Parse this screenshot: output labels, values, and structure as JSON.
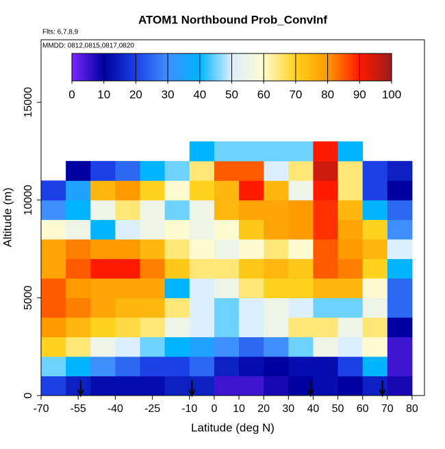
{
  "chart_data": {
    "type": "heatmap",
    "title": "ATOM1 Northbound Prob_ConvInf",
    "subtitle": "Flts: 6,7,8,9",
    "annotation": "MMDD: 0812,0815,0817,0820",
    "x_label": "Latitude (deg N)",
    "y_label": "Altitude (m)",
    "xlim": [
      -70,
      85
    ],
    "ylim": [
      0,
      18200
    ],
    "xticks": [
      -70,
      -55,
      -40,
      -25,
      -10,
      0,
      10,
      20,
      30,
      40,
      50,
      60,
      70,
      80
    ],
    "yticks": [
      0,
      5000,
      10000,
      15000
    ],
    "x_bins": [
      -70,
      -60,
      -50,
      -40,
      -30,
      -20,
      -10,
      0,
      10,
      20,
      30,
      40,
      50,
      60,
      70,
      80
    ],
    "y_bins": [
      0,
      1000,
      2000,
      3000,
      4000,
      5000,
      6000,
      7000,
      8000,
      9000,
      10000,
      11000,
      12000,
      13000
    ],
    "z": [
      [
        20,
        15,
        12,
        12,
        12,
        15,
        15,
        5,
        5,
        8,
        10,
        12,
        10,
        15,
        8
      ],
      [
        45,
        40,
        30,
        25,
        20,
        20,
        25,
        15,
        12,
        10,
        12,
        12,
        20,
        40,
        5
      ],
      [
        70,
        65,
        55,
        50,
        45,
        40,
        35,
        30,
        25,
        30,
        45,
        55,
        50,
        60,
        5
      ],
      [
        80,
        75,
        70,
        68,
        65,
        55,
        50,
        45,
        50,
        55,
        65,
        65,
        55,
        65,
        10
      ],
      [
        85,
        82,
        78,
        75,
        75,
        65,
        50,
        45,
        50,
        55,
        50,
        45,
        45,
        55,
        25
      ],
      [
        85,
        80,
        78,
        78,
        78,
        40,
        50,
        55,
        65,
        70,
        70,
        75,
        75,
        60,
        25
      ],
      [
        78,
        85,
        90,
        90,
        82,
        72,
        65,
        65,
        72,
        75,
        72,
        85,
        82,
        70,
        40
      ],
      [
        78,
        82,
        80,
        80,
        75,
        65,
        60,
        55,
        60,
        65,
        60,
        85,
        80,
        75,
        50
      ],
      [
        60,
        55,
        40,
        50,
        55,
        60,
        55,
        60,
        72,
        78,
        80,
        88,
        78,
        70,
        30
      ],
      [
        30,
        40,
        55,
        65,
        55,
        45,
        55,
        75,
        78,
        78,
        80,
        88,
        75,
        40,
        25
      ],
      [
        20,
        35,
        75,
        80,
        70,
        60,
        70,
        75,
        90,
        75,
        55,
        90,
        65,
        20,
        10
      ],
      [
        null,
        10,
        20,
        25,
        40,
        45,
        65,
        85,
        85,
        50,
        65,
        95,
        65,
        20,
        15
      ],
      [
        null,
        null,
        null,
        null,
        null,
        null,
        40,
        45,
        45,
        45,
        45,
        90,
        40,
        null,
        null
      ]
    ],
    "clim": [
      0,
      100
    ],
    "colorbar_ticks": [
      0,
      10,
      20,
      30,
      40,
      50,
      60,
      70,
      80,
      90,
      100
    ],
    "colors": [
      "#7a28ff",
      "#0000a0",
      "#1a40e6",
      "#3f8fff",
      "#00b4ff",
      "#dcefff",
      "#fffbd0",
      "#ffd21e",
      "#ff9900",
      "#ff1a00",
      "#9b1c1c"
    ],
    "arrows": [
      -54,
      -9,
      39,
      68
    ]
  }
}
